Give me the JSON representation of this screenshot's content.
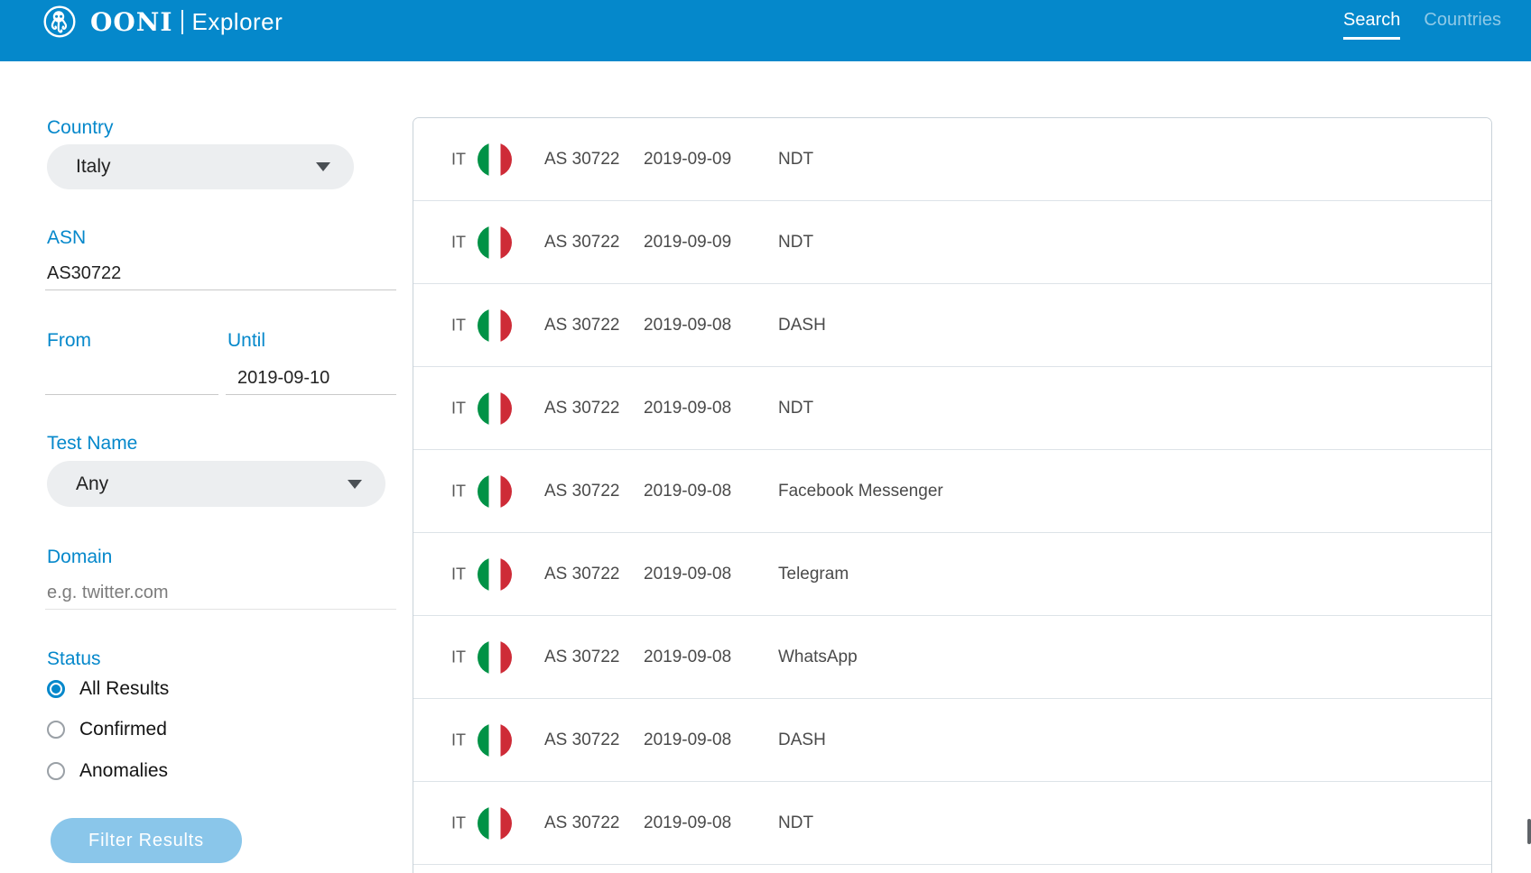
{
  "header": {
    "brand": {
      "name": "OONI",
      "product": "Explorer",
      "logo_icon": "ooni-octopus-logo"
    },
    "nav": [
      {
        "label": "Search",
        "active": true
      },
      {
        "label": "Countries",
        "active": false
      }
    ]
  },
  "filters": {
    "country": {
      "label": "Country",
      "value": "Italy"
    },
    "asn": {
      "label": "ASN",
      "value": "AS30722"
    },
    "from": {
      "label": "From",
      "value": ""
    },
    "until": {
      "label": "Until",
      "value": "2019-09-10"
    },
    "test_name": {
      "label": "Test Name",
      "value": "Any"
    },
    "domain": {
      "label": "Domain",
      "value": "",
      "placeholder": "e.g. twitter.com"
    },
    "status": {
      "label": "Status",
      "options": [
        {
          "label": "All Results",
          "selected": true
        },
        {
          "label": "Confirmed",
          "selected": false
        },
        {
          "label": "Anomalies",
          "selected": false
        }
      ]
    },
    "submit_label": "Filter Results"
  },
  "results": {
    "rows": [
      {
        "country_code": "IT",
        "flag": "italy-flag",
        "asn": "AS 30722",
        "date": "2019-09-09",
        "test_name": "NDT"
      },
      {
        "country_code": "IT",
        "flag": "italy-flag",
        "asn": "AS 30722",
        "date": "2019-09-09",
        "test_name": "NDT"
      },
      {
        "country_code": "IT",
        "flag": "italy-flag",
        "asn": "AS 30722",
        "date": "2019-09-08",
        "test_name": "DASH"
      },
      {
        "country_code": "IT",
        "flag": "italy-flag",
        "asn": "AS 30722",
        "date": "2019-09-08",
        "test_name": "NDT"
      },
      {
        "country_code": "IT",
        "flag": "italy-flag",
        "asn": "AS 30722",
        "date": "2019-09-08",
        "test_name": "Facebook Messenger"
      },
      {
        "country_code": "IT",
        "flag": "italy-flag",
        "asn": "AS 30722",
        "date": "2019-09-08",
        "test_name": "Telegram"
      },
      {
        "country_code": "IT",
        "flag": "italy-flag",
        "asn": "AS 30722",
        "date": "2019-09-08",
        "test_name": "WhatsApp"
      },
      {
        "country_code": "IT",
        "flag": "italy-flag",
        "asn": "AS 30722",
        "date": "2019-09-08",
        "test_name": "DASH"
      },
      {
        "country_code": "IT",
        "flag": "italy-flag",
        "asn": "AS 30722",
        "date": "2019-09-08",
        "test_name": "NDT"
      }
    ]
  },
  "colors": {
    "accent_blue": "#0588cb",
    "button_disabled_blue": "#8ac6ea",
    "flag_green": "#009246",
    "flag_red": "#ce2b37",
    "row_border": "#dde3e8"
  }
}
